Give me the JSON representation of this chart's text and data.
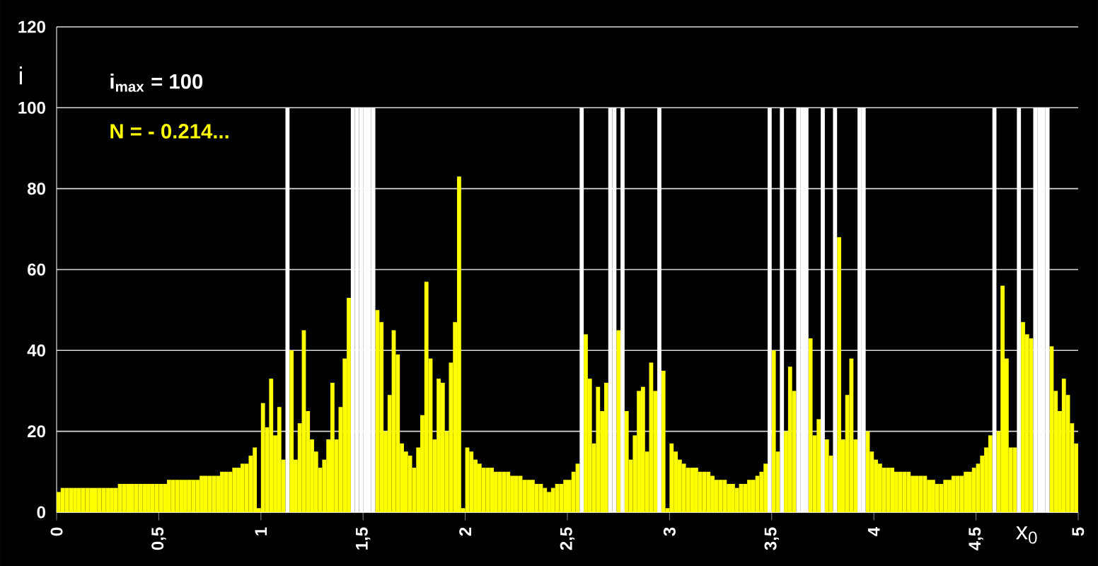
{
  "chart_data": {
    "type": "bar",
    "xlabel": "x$_{0}$",
    "ylabel": "i",
    "annotations": [
      "i$_{max}$ = 100",
      "N = - 0.214..."
    ],
    "xlim": [
      0,
      5
    ],
    "ylim": [
      0,
      120
    ],
    "xticks": [
      0,
      {
        "value": 0.5,
        "label": "0,5"
      },
      1,
      {
        "value": 1.5,
        "label": "1,5"
      },
      2,
      {
        "value": 2.5,
        "label": "2,5"
      },
      3,
      {
        "value": 3.5,
        "label": "3,5"
      },
      4,
      {
        "value": 4.5,
        "label": "4,5"
      },
      5
    ],
    "yticks": [
      0,
      20,
      40,
      60,
      80,
      100,
      120
    ],
    "grid": "y",
    "legend": false,
    "x": [
      0.01,
      0.03,
      0.05,
      0.07,
      0.09,
      0.11,
      0.13,
      0.15,
      0.17,
      0.19,
      0.21,
      0.23,
      0.25,
      0.27,
      0.29,
      0.31,
      0.33,
      0.35,
      0.37,
      0.39,
      0.41,
      0.43,
      0.45,
      0.47,
      0.49,
      0.51,
      0.53,
      0.55,
      0.57,
      0.59,
      0.61,
      0.63,
      0.65,
      0.67,
      0.69,
      0.71,
      0.73,
      0.75,
      0.77,
      0.79,
      0.81,
      0.83,
      0.85,
      0.87,
      0.89,
      0.91,
      0.93,
      0.95,
      0.97,
      0.99,
      1.01,
      1.03,
      1.05,
      1.07,
      1.09,
      1.11,
      1.13,
      1.15,
      1.17,
      1.19,
      1.21,
      1.23,
      1.25,
      1.27,
      1.29,
      1.31,
      1.33,
      1.35,
      1.37,
      1.39,
      1.41,
      1.43,
      1.45,
      1.47,
      1.49,
      1.51,
      1.53,
      1.55,
      1.57,
      1.59,
      1.61,
      1.63,
      1.65,
      1.67,
      1.69,
      1.71,
      1.73,
      1.75,
      1.77,
      1.79,
      1.81,
      1.83,
      1.85,
      1.87,
      1.89,
      1.91,
      1.93,
      1.95,
      1.97,
      1.99,
      2.01,
      2.03,
      2.05,
      2.07,
      2.09,
      2.11,
      2.13,
      2.15,
      2.17,
      2.19,
      2.21,
      2.23,
      2.25,
      2.27,
      2.29,
      2.31,
      2.33,
      2.35,
      2.37,
      2.39,
      2.41,
      2.43,
      2.45,
      2.47,
      2.49,
      2.51,
      2.53,
      2.55,
      2.57,
      2.59,
      2.61,
      2.63,
      2.65,
      2.67,
      2.69,
      2.71,
      2.73,
      2.75,
      2.77,
      2.79,
      2.81,
      2.83,
      2.85,
      2.87,
      2.89,
      2.91,
      2.93,
      2.95,
      2.97,
      2.99,
      3.01,
      3.03,
      3.05,
      3.07,
      3.09,
      3.11,
      3.13,
      3.15,
      3.17,
      3.19,
      3.21,
      3.23,
      3.25,
      3.27,
      3.29,
      3.31,
      3.33,
      3.35,
      3.37,
      3.39,
      3.41,
      3.43,
      3.45,
      3.47,
      3.49,
      3.51,
      3.53,
      3.55,
      3.57,
      3.59,
      3.61,
      3.63,
      3.65,
      3.67,
      3.69,
      3.71,
      3.73,
      3.75,
      3.77,
      3.79,
      3.81,
      3.83,
      3.85,
      3.87,
      3.89,
      3.91,
      3.93,
      3.95,
      3.97,
      3.99,
      4.01,
      4.03,
      4.05,
      4.07,
      4.09,
      4.11,
      4.13,
      4.15,
      4.17,
      4.19,
      4.21,
      4.23,
      4.25,
      4.27,
      4.29,
      4.31,
      4.33,
      4.35,
      4.37,
      4.39,
      4.41,
      4.43,
      4.45,
      4.47,
      4.49,
      4.51,
      4.53,
      4.55,
      4.57,
      4.59,
      4.61,
      4.63,
      4.65,
      4.67,
      4.69,
      4.71,
      4.73,
      4.75,
      4.77,
      4.79,
      4.81,
      4.83,
      4.85,
      4.87,
      4.89,
      4.91,
      4.93,
      4.95,
      4.97,
      4.99
    ],
    "series": [
      {
        "color": "#ffff00",
        "values": [
          5,
          6,
          6,
          6,
          6,
          6,
          6,
          6,
          6,
          6,
          6,
          6,
          6,
          6,
          6,
          7,
          7,
          7,
          7,
          7,
          7,
          7,
          7,
          7,
          7,
          7,
          7,
          8,
          8,
          8,
          8,
          8,
          8,
          8,
          8,
          9,
          9,
          9,
          9,
          9,
          10,
          10,
          10,
          11,
          11,
          12,
          12,
          14,
          16,
          1,
          27,
          21,
          33,
          19,
          26,
          13,
          null,
          40,
          13,
          22,
          45,
          25,
          18,
          15,
          11,
          13,
          18,
          32,
          18,
          26,
          38,
          53,
          null,
          null,
          null,
          null,
          null,
          null,
          50,
          47,
          20,
          29,
          45,
          39,
          17,
          15,
          14,
          11,
          16,
          24,
          57,
          38,
          18,
          33,
          32,
          20,
          37,
          47,
          83,
          1,
          16,
          15,
          13,
          12,
          11,
          11,
          11,
          10,
          10,
          10,
          10,
          9,
          9,
          9,
          8,
          8,
          8,
          7,
          7,
          6,
          5,
          6,
          7,
          7,
          8,
          8,
          10,
          12,
          null,
          44,
          33,
          17,
          31,
          25,
          32,
          null,
          null,
          45,
          null,
          25,
          13,
          19,
          30,
          31,
          15,
          37,
          30,
          null,
          35,
          1,
          17,
          15,
          13,
          12,
          11,
          11,
          11,
          10,
          10,
          10,
          9,
          8,
          8,
          8,
          7,
          7,
          6,
          7,
          7,
          8,
          8,
          9,
          10,
          12,
          null,
          40,
          15,
          null,
          20,
          36,
          30,
          null,
          null,
          null,
          43,
          19,
          23,
          null,
          18,
          14,
          null,
          68,
          18,
          29,
          38,
          18,
          null,
          null,
          20,
          15,
          13,
          12,
          11,
          11,
          11,
          10,
          10,
          10,
          10,
          9,
          9,
          9,
          9,
          8,
          8,
          7,
          7,
          8,
          8,
          9,
          9,
          9,
          10,
          10,
          11,
          12,
          14,
          16,
          19,
          null,
          20,
          56,
          38,
          16,
          16,
          null,
          47,
          44,
          43,
          null,
          null,
          null,
          null,
          41,
          30,
          25,
          33,
          29,
          22,
          17
        ]
      },
      {
        "color": "#ffffff",
        "values": [
          null,
          null,
          null,
          null,
          null,
          null,
          null,
          null,
          null,
          null,
          null,
          null,
          null,
          null,
          null,
          null,
          null,
          null,
          null,
          null,
          null,
          null,
          null,
          null,
          null,
          null,
          null,
          null,
          null,
          null,
          null,
          null,
          null,
          null,
          null,
          null,
          null,
          null,
          null,
          null,
          null,
          null,
          null,
          null,
          null,
          null,
          null,
          null,
          null,
          null,
          null,
          null,
          null,
          null,
          null,
          null,
          100,
          null,
          null,
          null,
          null,
          null,
          null,
          null,
          null,
          null,
          null,
          null,
          null,
          null,
          null,
          null,
          100,
          100,
          100,
          100,
          100,
          100,
          null,
          null,
          null,
          null,
          null,
          null,
          null,
          null,
          null,
          null,
          null,
          null,
          null,
          null,
          null,
          null,
          null,
          null,
          null,
          null,
          null,
          null,
          null,
          null,
          null,
          null,
          null,
          null,
          null,
          null,
          null,
          null,
          null,
          null,
          null,
          null,
          null,
          null,
          null,
          null,
          null,
          null,
          null,
          null,
          null,
          null,
          null,
          null,
          null,
          null,
          100,
          null,
          null,
          null,
          null,
          null,
          null,
          100,
          100,
          null,
          100,
          null,
          null,
          null,
          null,
          null,
          null,
          null,
          null,
          100,
          null,
          null,
          null,
          null,
          null,
          null,
          null,
          null,
          null,
          null,
          null,
          null,
          null,
          null,
          null,
          null,
          null,
          null,
          null,
          null,
          null,
          null,
          null,
          null,
          null,
          null,
          100,
          null,
          null,
          100,
          null,
          null,
          null,
          100,
          100,
          100,
          null,
          null,
          null,
          100,
          null,
          null,
          100,
          null,
          null,
          null,
          null,
          null,
          100,
          100,
          null,
          null,
          null,
          null,
          null,
          null,
          null,
          null,
          null,
          null,
          null,
          null,
          null,
          null,
          null,
          null,
          null,
          null,
          null,
          null,
          null,
          null,
          null,
          null,
          null,
          null,
          null,
          null,
          null,
          null,
          null,
          100,
          null,
          null,
          null,
          null,
          null,
          100,
          null,
          null,
          null,
          100,
          100,
          100,
          100,
          null,
          null,
          null,
          null,
          null,
          null,
          null
        ]
      }
    ]
  }
}
